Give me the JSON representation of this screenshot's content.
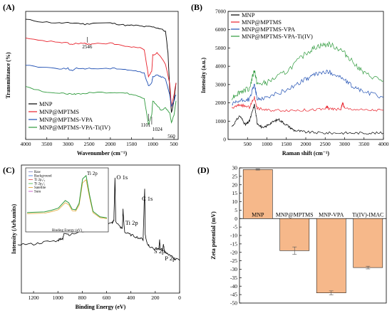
{
  "chart_data": [
    {
      "panel": "(A)",
      "type": "line",
      "xlabel": "Wavenumber (cm⁻¹)",
      "ylabel": "Transmittance (%)",
      "xlim": [
        4000,
        400
      ],
      "x_ticks": [
        "4000",
        "3500",
        "3000",
        "2500",
        "2000",
        "1500",
        "1000",
        "500"
      ],
      "annotations": [
        "2546",
        "1101",
        "1024",
        "560"
      ],
      "legend_position": "bottom-left",
      "series": [
        {
          "name": "MNP",
          "color": "#000000",
          "x": [
            4000,
            3600,
            3200,
            3000,
            2800,
            2600,
            2400,
            2000,
            1800,
            1600,
            1400,
            1200,
            1050,
            900,
            800,
            700,
            640,
            600,
            560,
            500,
            450
          ],
          "y": [
            0.98,
            0.96,
            0.95,
            0.95,
            0.95,
            0.94,
            0.95,
            0.95,
            0.94,
            0.93,
            0.93,
            0.92,
            0.92,
            0.91,
            0.9,
            0.88,
            0.7,
            0.4,
            0.2,
            0.3,
            0.45
          ]
        },
        {
          "name": "MNP@MPTMS",
          "color": "#e8202a",
          "x": [
            4000,
            3600,
            3200,
            3000,
            2900,
            2800,
            2600,
            2546,
            2400,
            2000,
            1800,
            1600,
            1400,
            1200,
            1101,
            1024,
            1000,
            900,
            800,
            700,
            600,
            560,
            500,
            450
          ],
          "y": [
            0.82,
            0.8,
            0.79,
            0.78,
            0.77,
            0.78,
            0.78,
            0.77,
            0.78,
            0.78,
            0.77,
            0.75,
            0.75,
            0.73,
            0.5,
            0.55,
            0.68,
            0.7,
            0.66,
            0.6,
            0.45,
            0.25,
            0.35,
            0.45
          ]
        },
        {
          "name": "MNP@MPTMS-VPA",
          "color": "#1f4fb3",
          "x": [
            4000,
            3600,
            3200,
            3000,
            2900,
            2800,
            2600,
            2400,
            2000,
            1800,
            1600,
            1400,
            1200,
            1101,
            1024,
            1000,
            900,
            800,
            700,
            600,
            560,
            500,
            450
          ],
          "y": [
            0.6,
            0.58,
            0.57,
            0.57,
            0.55,
            0.57,
            0.57,
            0.57,
            0.57,
            0.57,
            0.56,
            0.55,
            0.53,
            0.42,
            0.45,
            0.5,
            0.52,
            0.5,
            0.48,
            0.35,
            0.25,
            0.3,
            0.35
          ]
        },
        {
          "name": "MNP@MPTMS-VPA-Ti(IV)",
          "color": "#2e9a3c",
          "x": [
            4000,
            3600,
            3200,
            3000,
            2900,
            2800,
            2600,
            2400,
            2000,
            1800,
            1600,
            1400,
            1200,
            1101,
            1024,
            1000,
            900,
            800,
            700,
            600,
            560,
            500,
            450
          ],
          "y": [
            0.42,
            0.38,
            0.36,
            0.36,
            0.35,
            0.36,
            0.36,
            0.37,
            0.37,
            0.37,
            0.36,
            0.35,
            0.32,
            0.1,
            0.18,
            0.3,
            0.26,
            0.22,
            0.24,
            0.2,
            0.12,
            0.18,
            0.3
          ]
        }
      ]
    },
    {
      "panel": "(B)",
      "type": "line",
      "xlabel": "Raman shift (cm⁻¹)",
      "ylabel": "Intensity (a.u.)",
      "xlim": [
        0,
        4000
      ],
      "ylim": [
        0,
        7000
      ],
      "x_ticks": [
        "500",
        "1000",
        "1500",
        "2000",
        "2500",
        "3000",
        "3500",
        "4000"
      ],
      "y_ticks": [
        "0",
        "1000",
        "2000",
        "3000",
        "4000",
        "5000",
        "6000",
        "7000"
      ],
      "legend_position": "top-left",
      "series": [
        {
          "name": "MNP",
          "color": "#000000",
          "x": [
            100,
            300,
            450,
            550,
            680,
            750,
            900,
            1100,
            1300,
            1500,
            1700,
            2000,
            2500,
            3000,
            3500,
            4000
          ],
          "y": [
            700,
            1300,
            800,
            1000,
            1900,
            900,
            600,
            900,
            1100,
            800,
            500,
            400,
            350,
            350,
            350,
            350
          ]
        },
        {
          "name": "MNP@MPTMS",
          "color": "#e8202a",
          "x": [
            100,
            300,
            550,
            680,
            750,
            1000,
            1500,
            2000,
            2500,
            2550,
            2600,
            2900,
            2950,
            3000,
            3500,
            4000
          ],
          "y": [
            1700,
            1900,
            1750,
            2300,
            1700,
            1600,
            1600,
            1600,
            1650,
            1800,
            1650,
            1650,
            2000,
            1700,
            1600,
            1600
          ]
        },
        {
          "name": "MNP@MPTMS-VPA",
          "color": "#1f4fb3",
          "x": [
            100,
            300,
            550,
            680,
            750,
            1000,
            1500,
            2000,
            2300,
            2600,
            2900,
            3200,
            3500,
            4000
          ],
          "y": [
            1900,
            2100,
            2200,
            3000,
            2200,
            2300,
            2700,
            3300,
            3600,
            3700,
            3400,
            2900,
            2600,
            2300
          ]
        },
        {
          "name": "MNP@MPTMS-VPA-Ti(IV)",
          "color": "#2e9a3c",
          "x": [
            100,
            300,
            550,
            680,
            750,
            1000,
            1500,
            2000,
            2300,
            2600,
            2900,
            3200,
            3500,
            4000
          ],
          "y": [
            2300,
            2600,
            2800,
            3800,
            3000,
            3100,
            3700,
            4700,
            5100,
            5200,
            4900,
            4300,
            3600,
            3200
          ]
        }
      ]
    },
    {
      "panel": "(C)",
      "type": "line",
      "xlabel": "Binding Energy (eV)",
      "ylabel": "Intensity (Arb.units)",
      "xlim": [
        1300,
        0
      ],
      "x_ticks": [
        "1200",
        "1000",
        "800",
        "600",
        "400",
        "200",
        "0"
      ],
      "peak_labels": [
        "O 1s",
        "Ti 2p",
        "C 1s",
        "S 2p",
        "P 2p"
      ],
      "series": [
        {
          "name": "Survey",
          "color": "#000000",
          "x": [
            1330,
            1200,
            1100,
            1000,
            980,
            960,
            950,
            900,
            800,
            700,
            620,
            560,
            540,
            531,
            525,
            500,
            470,
            465,
            458,
            450,
            400,
            350,
            300,
            287,
            282,
            270,
            250,
            200,
            170,
            164,
            160,
            140,
            133,
            125,
            100,
            50,
            0
          ],
          "y": [
            0.42,
            0.42,
            0.44,
            0.45,
            0.47,
            0.46,
            0.52,
            0.5,
            0.53,
            0.55,
            0.58,
            0.6,
            0.62,
            1.0,
            0.62,
            0.58,
            0.55,
            0.72,
            0.6,
            0.52,
            0.5,
            0.48,
            0.46,
            0.9,
            0.5,
            0.44,
            0.4,
            0.38,
            0.38,
            0.46,
            0.38,
            0.37,
            0.42,
            0.36,
            0.34,
            0.3,
            0.28
          ]
        }
      ],
      "inset": {
        "title": "Ti 2p",
        "xlabel": "Binding Energy (eV)",
        "legend": [
          "Raw",
          "Background",
          "Ti 2p₁/₂",
          "Ti 2p₃/₂",
          "Satellite",
          "Sum"
        ],
        "legend_colors": [
          "#8080c0",
          "#3070e0",
          "#e04040",
          "#40b040",
          "#e0a020",
          "#c040c0"
        ],
        "x": [
          475,
          470,
          468,
          466,
          464,
          463,
          462,
          461,
          460,
          459,
          458,
          457,
          456,
          454,
          452
        ],
        "y": [
          0.28,
          0.29,
          0.32,
          0.36,
          0.5,
          0.46,
          0.34,
          0.33,
          0.45,
          0.9,
          0.96,
          0.6,
          0.3,
          0.2,
          0.18
        ]
      }
    },
    {
      "panel": "(D)",
      "type": "bar",
      "ylabel": "Zeta potential (mV)",
      "ylim": [
        -50,
        30
      ],
      "y_ticks": [
        "-50",
        "-45",
        "-40",
        "-35",
        "-30",
        "-25",
        "-20",
        "-15",
        "-10",
        "-5",
        "0",
        "5",
        "10",
        "15",
        "20",
        "25",
        "30"
      ],
      "categories": [
        "MNP",
        "MNP@MPTMS",
        "MNP-VPA",
        "Ti(IV)-IMAC"
      ],
      "values": [
        29,
        -19,
        -44,
        -29
      ],
      "errors": [
        0.3,
        2.2,
        1.2,
        0.8
      ],
      "bar_color": "#f6b88a"
    }
  ]
}
